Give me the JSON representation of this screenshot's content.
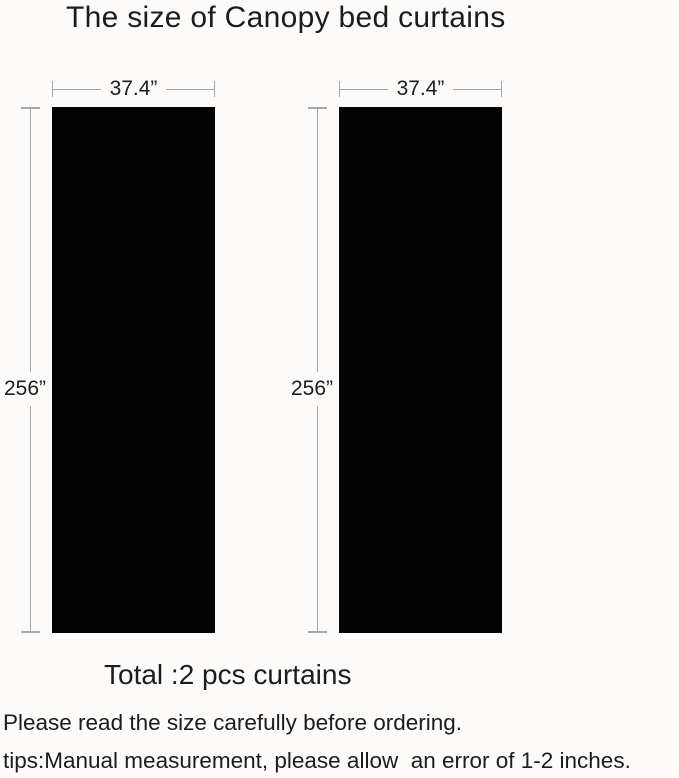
{
  "title": "The size of Canopy bed curtains",
  "diagram": {
    "curtains": [
      {
        "width_label": "37.4”",
        "height_label": "256”"
      },
      {
        "width_label": "37.4”",
        "height_label": "256”"
      }
    ]
  },
  "summary": "Total :2 pcs curtains",
  "notes": {
    "ordering": "Please read the size carefully before ordering.",
    "measurement": "tips:Manual measurement, please allow  an error of 1-2 inches."
  },
  "colors": {
    "curtain": "#030303",
    "dimension_line": "#a6a6a6",
    "text": "#1c1c1c",
    "background": "#fcfbf9"
  }
}
